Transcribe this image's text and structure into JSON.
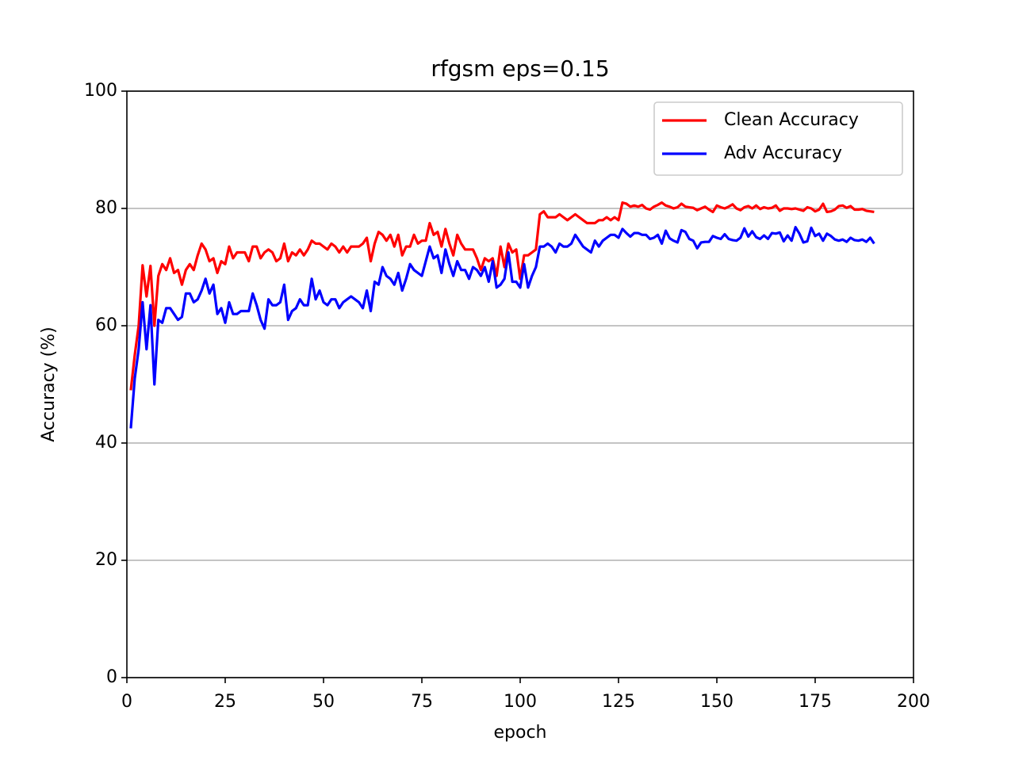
{
  "chart_data": {
    "type": "line",
    "title": "rfgsm eps=0.15",
    "xlabel": "epoch",
    "ylabel": "Accuracy (%)",
    "x": [
      1,
      2,
      3,
      4,
      5,
      6,
      7,
      8,
      9,
      10,
      11,
      12,
      13,
      14,
      15,
      16,
      17,
      18,
      19,
      20,
      21,
      22,
      23,
      24,
      25,
      26,
      27,
      28,
      29,
      30,
      31,
      32,
      33,
      34,
      35,
      36,
      37,
      38,
      39,
      40,
      41,
      42,
      43,
      44,
      45,
      46,
      47,
      48,
      49,
      50,
      51,
      52,
      53,
      54,
      55,
      56,
      57,
      58,
      59,
      60,
      61,
      62,
      63,
      64,
      65,
      66,
      67,
      68,
      69,
      70,
      71,
      72,
      73,
      74,
      75,
      76,
      77,
      78,
      79,
      80,
      81,
      82,
      83,
      84,
      85,
      86,
      87,
      88,
      89,
      90,
      91,
      92,
      93,
      94,
      95,
      96,
      97,
      98,
      99,
      100,
      101,
      102,
      103,
      104,
      105,
      106,
      107,
      108,
      109,
      110,
      111,
      112,
      113,
      114,
      115,
      116,
      117,
      118,
      119,
      120,
      121,
      122,
      123,
      124,
      125,
      126,
      127,
      128,
      129,
      130,
      131,
      132,
      133,
      134,
      135,
      136,
      137,
      138,
      139,
      140,
      141,
      142,
      143,
      144,
      145,
      146,
      147,
      148,
      149,
      150,
      151,
      152,
      153,
      154,
      155,
      156,
      157,
      158,
      159,
      160,
      161,
      162,
      163,
      164,
      165,
      166,
      167,
      168,
      169,
      170,
      171,
      172,
      173,
      174,
      175,
      176,
      177,
      178,
      179,
      180,
      181,
      182,
      183,
      184,
      185,
      186,
      187,
      188,
      189,
      190
    ],
    "series": [
      {
        "name": "Clean Accuracy",
        "color": "#ff0000",
        "values": [
          49,
          55,
          60,
          70.3,
          65,
          70.2,
          60,
          68.5,
          70.5,
          69.5,
          71.5,
          69,
          69.5,
          67,
          69.5,
          70.5,
          69.5,
          72,
          74,
          73,
          71,
          71.5,
          69,
          71,
          70.5,
          73.5,
          71.5,
          72.5,
          72.5,
          72.5,
          71,
          73.5,
          73.5,
          71.5,
          72.5,
          73,
          72.5,
          71,
          71.5,
          74,
          71,
          72.5,
          72,
          73,
          72,
          73,
          74.5,
          74,
          74,
          73.5,
          73,
          74,
          73.5,
          72.5,
          73.5,
          72.5,
          73.5,
          73.5,
          73.5,
          74,
          75,
          71,
          74,
          76,
          75.5,
          74.5,
          75.5,
          73.5,
          75.5,
          72,
          73.5,
          73.5,
          75.5,
          74,
          74.5,
          74.5,
          77.5,
          75.5,
          76,
          73.5,
          76.5,
          74,
          72,
          75.5,
          74,
          73,
          73,
          73,
          71.5,
          69.5,
          71.5,
          71,
          71.5,
          68.5,
          73.5,
          70,
          74,
          72.5,
          73,
          68,
          72,
          72,
          72.5,
          73,
          79,
          79.5,
          78.5,
          78.5,
          78.5,
          79,
          78.5,
          78,
          78.5,
          79,
          78.5,
          78,
          77.5,
          77.5,
          77.5,
          78,
          78,
          78.5,
          78,
          78.5,
          78,
          81,
          80.8,
          80.3,
          80.5,
          80.3,
          80.6,
          80,
          79.8,
          80.3,
          80.6,
          81,
          80.5,
          80.3,
          80,
          80.2,
          80.8,
          80.3,
          80.2,
          80.1,
          79.7,
          80,
          80.3,
          79.8,
          79.4,
          80.5,
          80.2,
          80,
          80.3,
          80.7,
          80,
          79.7,
          80.2,
          80.4,
          80,
          80.5,
          79.9,
          80.2,
          80,
          80.1,
          80.5,
          79.6,
          80,
          80,
          79.9,
          80,
          79.8,
          79.6,
          80.2,
          80,
          79.5,
          79.8,
          80.8,
          79.4,
          79.5,
          79.8,
          80.4,
          80.5,
          80.1,
          80.4,
          79.8,
          79.8,
          79.9,
          79.6,
          79.5,
          79.4
        ]
      },
      {
        "name": "Adv Accuracy",
        "color": "#0000ff",
        "values": [
          42.5,
          51,
          56,
          64,
          56,
          63.5,
          50,
          61,
          60.5,
          63,
          63,
          62,
          61,
          61.5,
          65.5,
          65.5,
          64,
          64.5,
          66,
          68,
          65.5,
          67,
          62,
          63,
          60.5,
          64,
          62,
          62,
          62.5,
          62.5,
          62.5,
          65.5,
          63.5,
          61,
          59.5,
          64.5,
          63.5,
          63.5,
          64,
          67,
          61,
          62.5,
          63,
          64.5,
          63.5,
          63.5,
          68,
          64.5,
          66,
          64,
          63.5,
          64.5,
          64.5,
          63,
          64,
          64.5,
          65,
          64.5,
          64,
          63,
          66,
          62.5,
          67.5,
          67,
          70,
          68.5,
          68,
          67,
          69,
          66,
          68,
          70.5,
          69.5,
          69,
          68.5,
          71,
          73.5,
          71.5,
          72,
          69,
          73,
          70.5,
          68.5,
          71,
          69.5,
          69.5,
          68,
          70,
          69.5,
          68.5,
          70,
          67.5,
          71,
          66.5,
          67,
          68,
          72.5,
          67.5,
          67.5,
          66.5,
          70.5,
          66.5,
          68.5,
          70,
          73.5,
          73.5,
          74,
          73.5,
          72.5,
          74,
          73.5,
          73.5,
          74,
          75.5,
          74.5,
          73.5,
          73,
          72.5,
          74.5,
          73.5,
          74.5,
          75,
          75.5,
          75.5,
          75,
          76.5,
          75.8,
          75.2,
          75.8,
          75.8,
          75.5,
          75.5,
          74.8,
          75,
          75.5,
          74,
          76.2,
          74.9,
          74.5,
          74.2,
          76.3,
          76,
          74.8,
          74.5,
          73.2,
          74.2,
          74.3,
          74.3,
          75.3,
          75,
          74.8,
          75.6,
          74.8,
          74.6,
          74.5,
          75,
          76.6,
          75.2,
          76.1,
          75.1,
          74.8,
          75.4,
          74.8,
          75.8,
          75.7,
          75.9,
          74.4,
          75.4,
          74.5,
          76.8,
          75.7,
          74.2,
          74.4,
          76.7,
          75.3,
          75.7,
          74.5,
          75.7,
          75.3,
          74.7,
          74.5,
          74.7,
          74.3,
          75,
          74.6,
          74.5,
          74.7,
          74.3,
          75,
          74
        ]
      }
    ],
    "xlim": [
      0,
      200
    ],
    "xticks": [
      0,
      25,
      50,
      75,
      100,
      125,
      150,
      175,
      200
    ],
    "ylim": [
      0,
      100
    ],
    "yticks": [
      0,
      20,
      40,
      60,
      80,
      100
    ],
    "grid": "y",
    "legend": "upper right"
  }
}
